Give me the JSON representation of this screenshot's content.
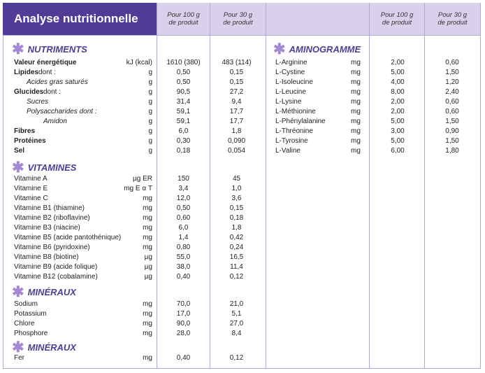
{
  "header": {
    "title": "Analyse nutritionnelle",
    "col_100g": "Pour 100 g\nde produit",
    "col_30g": "Pour 30 g\nde produit"
  },
  "sections": {
    "nutriments": "NUTRIMENTS",
    "vitamines": "VITAMINES",
    "mineraux": "MINÉRAUX",
    "mineraux2": "MINÉRAUX",
    "aminogramme": "AMINOGRAMME"
  },
  "nutriments": [
    {
      "name": "Valeur énergétique",
      "unit": "kJ (kcal)",
      "v100": "1610 (380)",
      "v30": "483 (114)"
    },
    {
      "name": "Lipides",
      "suffix": " dont :",
      "unit": "g",
      "v100": "0,50",
      "v30": "0,15"
    },
    {
      "name": "Acides gras saturés",
      "unit": "g",
      "v100": "0,50",
      "v30": "0,15"
    },
    {
      "name": "Glucides",
      "suffix": " dont :",
      "unit": "g",
      "v100": "90,5",
      "v30": "27,2"
    },
    {
      "name": "Sucres",
      "unit": "g",
      "v100": "31,4",
      "v30": "9,4"
    },
    {
      "name": "Polysaccharides dont :",
      "unit": "g",
      "v100": "59,1",
      "v30": "17,7"
    },
    {
      "name": "Amidon",
      "unit": "g",
      "v100": "59,1",
      "v30": "17,7"
    },
    {
      "name": "Fibres",
      "unit": "g",
      "v100": "6,0",
      "v30": "1,8"
    },
    {
      "name": "Protéines",
      "unit": "g",
      "v100": "0,30",
      "v30": "0,090"
    },
    {
      "name": "Sel",
      "unit": "g",
      "v100": "0,18",
      "v30": "0,054"
    }
  ],
  "vitamines": [
    {
      "name": "Vitamine A",
      "unit": "µg ER",
      "v100": "150",
      "v30": "45"
    },
    {
      "name": "Vitamine E",
      "unit": "mg E α T",
      "v100": "3,4",
      "v30": "1,0"
    },
    {
      "name": "Vitamine C",
      "unit": "mg",
      "v100": "12,0",
      "v30": "3,6"
    },
    {
      "name": "Vitamine B1 (thiamine)",
      "unit": "mg",
      "v100": "0,50",
      "v30": "0,15"
    },
    {
      "name": "Vitamine B2 (riboflavine)",
      "unit": "mg",
      "v100": "0,60",
      "v30": "0,18"
    },
    {
      "name": "Vitamine B3 (niacine)",
      "unit": "mg",
      "v100": "6,0",
      "v30": "1,8"
    },
    {
      "name": "Vitamine B5 (acide pantothénique)",
      "unit": "mg",
      "v100": "1,4",
      "v30": "0,42"
    },
    {
      "name": "Vitamine B6 (pyridoxine)",
      "unit": "mg",
      "v100": "0,80",
      "v30": "0,24"
    },
    {
      "name": "Vitamine B8 (biotine)",
      "unit": "µg",
      "v100": "55,0",
      "v30": "16,5"
    },
    {
      "name": "Vitamine B9 (acide folique)",
      "unit": "µg",
      "v100": "38,0",
      "v30": "11,4"
    },
    {
      "name": "Vitamine B12 (cobalamine)",
      "unit": "µg",
      "v100": "0,40",
      "v30": "0,12"
    }
  ],
  "mineraux": [
    {
      "name": "Sodium",
      "unit": "mg",
      "v100": "70,0",
      "v30": "21,0"
    },
    {
      "name": "Potassium",
      "unit": "mg",
      "v100": "17,0",
      "v30": "5,1"
    },
    {
      "name": "Chlore",
      "unit": "mg",
      "v100": "90,0",
      "v30": "27,0"
    },
    {
      "name": "Phosphore",
      "unit": "mg",
      "v100": "28,0",
      "v30": "8,4"
    }
  ],
  "mineraux2": [
    {
      "name": "Fer",
      "unit": "mg",
      "v100": "0,40",
      "v30": "0,12"
    }
  ],
  "aminogramme": [
    {
      "name": "L-Arginine",
      "unit": "mg",
      "v100": "2,00",
      "v30": "0,60"
    },
    {
      "name": "L-Cystine",
      "unit": "mg",
      "v100": "5,00",
      "v30": "1,50"
    },
    {
      "name": "L-Isoleucine",
      "unit": "mg",
      "v100": "4,00",
      "v30": "1,20"
    },
    {
      "name": "L-Leucine",
      "unit": "mg",
      "v100": "8,00",
      "v30": "2,40"
    },
    {
      "name": "L-Lysine",
      "unit": "mg",
      "v100": "2,00",
      "v30": "0,60"
    },
    {
      "name": "L-Méthionine",
      "unit": "mg",
      "v100": "2,00",
      "v30": "0,60"
    },
    {
      "name": "L-Phénylalanine",
      "unit": "mg",
      "v100": "5,00",
      "v30": "1,50"
    },
    {
      "name": "L-Thréonine",
      "unit": "mg",
      "v100": "3,00",
      "v30": "0,90"
    },
    {
      "name": "L-Tyrosine",
      "unit": "mg",
      "v100": "5,00",
      "v30": "1,50"
    },
    {
      "name": "L-Valine",
      "unit": "mg",
      "v100": "6,00",
      "v30": "1,80"
    }
  ],
  "colors": {
    "title_bg": "#4f3c96",
    "header_bg": "#d9d1ec",
    "accent": "#4f3c96",
    "star": "#a58ad3",
    "grid": "#b7a9d6"
  }
}
